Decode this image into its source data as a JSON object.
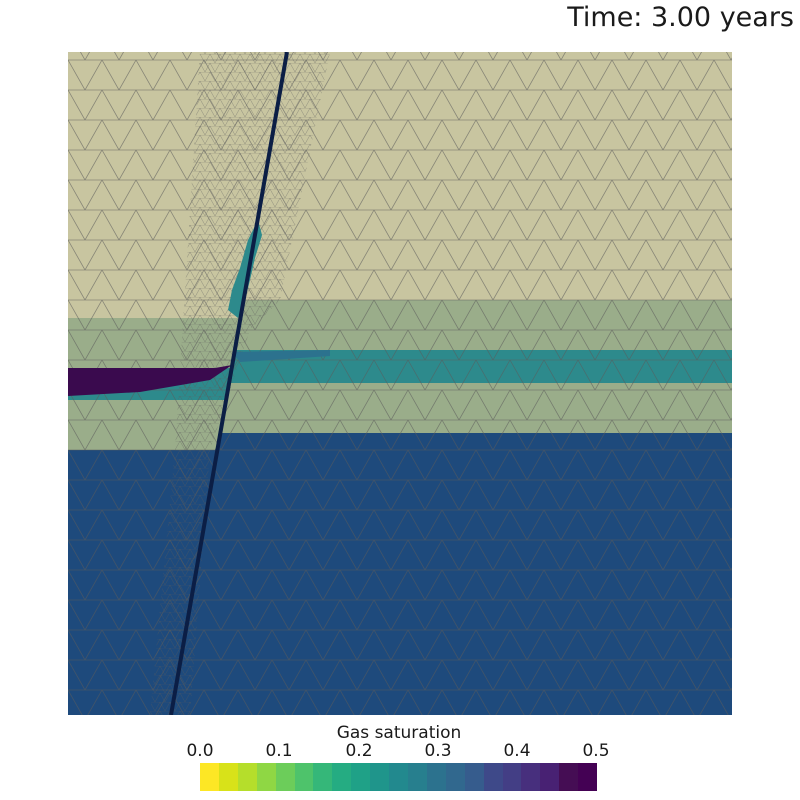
{
  "header": {
    "time_text": "Time: 3.00 years"
  },
  "colorbar": {
    "title": "Gas saturation",
    "ticks": [
      "0.0",
      "0.1",
      "0.2",
      "0.3",
      "0.4",
      "0.5"
    ],
    "range": [
      0.0,
      0.5
    ],
    "colormap": [
      "#fde725",
      "#d8e219",
      "#b5de2b",
      "#8fd744",
      "#6ccd5a",
      "#4ec36b",
      "#35b779",
      "#25ac82",
      "#1fa187",
      "#1f958b",
      "#22898e",
      "#277f8e",
      "#2c728e",
      "#31688e",
      "#365c8d",
      "#3e4989",
      "#433e85",
      "#472f7d",
      "#482173",
      "#450d54",
      "#440154"
    ]
  },
  "regions": {
    "caprock_color": "#c8c5a0",
    "sand_layer_color": "#9aad8a",
    "gas_layer_color": "#2d8a8c",
    "lower_formation_color": "#1e4a7c",
    "fault_color": "#0b1e45",
    "plume_color": "#3a0a4e",
    "mesh_color": "#5a5a5a"
  }
}
